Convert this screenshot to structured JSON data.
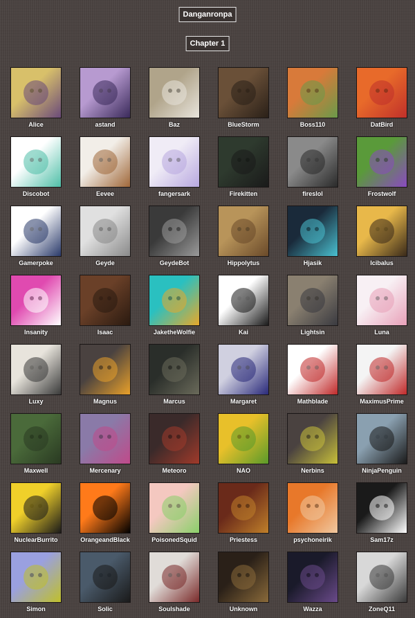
{
  "game_title": "Danganronpa",
  "chapter_title": "Chapter 1",
  "players": [
    {
      "name": "Alice",
      "colors": [
        "#d8c06a",
        "#6a4a7a"
      ]
    },
    {
      "name": "astand",
      "colors": [
        "#b79ad0",
        "#3a2a5a"
      ]
    },
    {
      "name": "Baz",
      "colors": [
        "#b0a48a",
        "#e8e4dc"
      ]
    },
    {
      "name": "BlueStorm",
      "colors": [
        "#6a5038",
        "#2a2018"
      ]
    },
    {
      "name": "Boss110",
      "colors": [
        "#d87a3a",
        "#6a9a4a"
      ]
    },
    {
      "name": "DatBird",
      "colors": [
        "#e86a2a",
        "#c0302a"
      ]
    },
    {
      "name": "Discobot",
      "colors": [
        "#ffffff",
        "#4fbfa8"
      ]
    },
    {
      "name": "Eevee",
      "colors": [
        "#f2eee8",
        "#a0683a"
      ]
    },
    {
      "name": "fangersark",
      "colors": [
        "#f0ecf6",
        "#b8a8e0"
      ]
    },
    {
      "name": "Firekitten",
      "colors": [
        "#2e3a2e",
        "#1a1a1a"
      ]
    },
    {
      "name": "fireslol",
      "colors": [
        "#8a8a8a",
        "#2a2a2a"
      ]
    },
    {
      "name": "Frostwolf",
      "colors": [
        "#5a9a3a",
        "#8a4ac0"
      ]
    },
    {
      "name": "Gamerpoke",
      "colors": [
        "#ffffff",
        "#2a3a6a"
      ]
    },
    {
      "name": "Geyde",
      "colors": [
        "#e0e0e0",
        "#8a8a8a"
      ]
    },
    {
      "name": "GeydeBot",
      "colors": [
        "#3a3a3a",
        "#9a9a9a"
      ]
    },
    {
      "name": "Hippolytus",
      "colors": [
        "#b8945a",
        "#6a4a2a"
      ]
    },
    {
      "name": "Hjasik",
      "colors": [
        "#1a2a3a",
        "#4ac0d0"
      ]
    },
    {
      "name": "Icibalus",
      "colors": [
        "#e8b84a",
        "#3a2a1a"
      ]
    },
    {
      "name": "Insanity",
      "colors": [
        "#e04ab0",
        "#ffffff"
      ]
    },
    {
      "name": "Isaac",
      "colors": [
        "#6a4028",
        "#2a1a10"
      ]
    },
    {
      "name": "JaketheWolfie",
      "colors": [
        "#2ac0c0",
        "#e8a82a"
      ]
    },
    {
      "name": "Kai",
      "colors": [
        "#ffffff",
        "#1a1a1a"
      ]
    },
    {
      "name": "Lightsin",
      "colors": [
        "#8a8070",
        "#3a3a40"
      ]
    },
    {
      "name": "Luna",
      "colors": [
        "#f8f0f4",
        "#e8a0b8"
      ]
    },
    {
      "name": "Luxy",
      "colors": [
        "#e8e4dc",
        "#3a3a3a"
      ]
    },
    {
      "name": "Magnus",
      "colors": [
        "#4a4240",
        "#e8a02a"
      ]
    },
    {
      "name": "Marcus",
      "colors": [
        "#2a2e2a",
        "#6a6a5a"
      ]
    },
    {
      "name": "Margaret",
      "colors": [
        "#d0d0e0",
        "#2a2a7a"
      ]
    },
    {
      "name": "Mathblade",
      "colors": [
        "#ffffff",
        "#c02a2a"
      ]
    },
    {
      "name": "MaximusPrime",
      "colors": [
        "#f4f4f4",
        "#c02a2a"
      ]
    },
    {
      "name": "Maxwell",
      "colors": [
        "#4a6a3a",
        "#2a3a22"
      ]
    },
    {
      "name": "Mercenary",
      "colors": [
        "#8a7aa8",
        "#c04a8a"
      ]
    },
    {
      "name": "Meteoro",
      "colors": [
        "#3a2a2a",
        "#a03a2a"
      ]
    },
    {
      "name": "NAO",
      "colors": [
        "#e8c02a",
        "#5a9a2a"
      ]
    },
    {
      "name": "Nerbins",
      "colors": [
        "#4a4240",
        "#c8c03a"
      ]
    },
    {
      "name": "NinjaPenguin",
      "colors": [
        "#8aa0b0",
        "#1a1a1a"
      ]
    },
    {
      "name": "NuclearBurrito",
      "colors": [
        "#f0d02a",
        "#1a1a1a"
      ]
    },
    {
      "name": "OrangeandBlack",
      "colors": [
        "#ff7a1a",
        "#000000"
      ]
    },
    {
      "name": "PoisonedSquid",
      "colors": [
        "#f4c8c0",
        "#8ad06a"
      ]
    },
    {
      "name": "Priestess",
      "colors": [
        "#6a2a1a",
        "#c0802a"
      ]
    },
    {
      "name": "psychoneirik",
      "colors": [
        "#e8782a",
        "#f0c8a0"
      ]
    },
    {
      "name": "Sam17z",
      "colors": [
        "#1a1a1a",
        "#ffffff"
      ]
    },
    {
      "name": "Simon",
      "colors": [
        "#9aa0e0",
        "#c0c02a"
      ]
    },
    {
      "name": "Solic",
      "colors": [
        "#4a5a6a",
        "#1a1a1a"
      ]
    },
    {
      "name": "Soulshade",
      "colors": [
        "#e0dcd8",
        "#7a2a2a"
      ]
    },
    {
      "name": "Unknown",
      "colors": [
        "#2a2018",
        "#8a6a3a"
      ]
    },
    {
      "name": "Wazza",
      "colors": [
        "#1a1a2a",
        "#6a4a8a"
      ]
    },
    {
      "name": "ZoneQ11",
      "colors": [
        "#d8d8d8",
        "#3a3a3a"
      ]
    }
  ]
}
